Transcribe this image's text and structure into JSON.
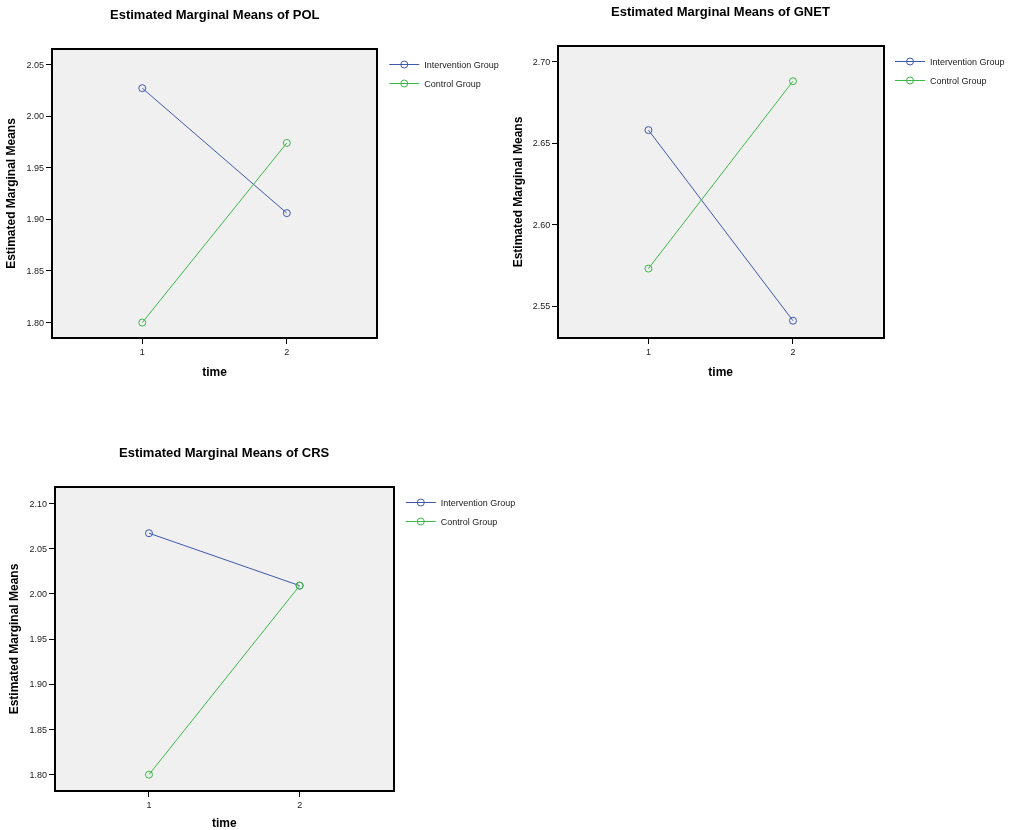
{
  "chart_data": [
    {
      "type": "line",
      "title": "Estimated Marginal Means of POL",
      "xlabel": "time",
      "ylabel": "Estimated Marginal Means",
      "categories": [
        "1",
        "2"
      ],
      "ylim": [
        1.786,
        2.064
      ],
      "yticks": [
        {
          "value": 1.8,
          "label": "1.80"
        },
        {
          "value": 1.85,
          "label": "1.85"
        },
        {
          "value": 1.9,
          "label": "1.90"
        },
        {
          "value": 1.95,
          "label": "1.95"
        },
        {
          "value": 2.0,
          "label": "2.00"
        },
        {
          "value": 2.05,
          "label": "2.05"
        }
      ],
      "marker": "circle",
      "legend": "top right",
      "grid": false,
      "series": [
        {
          "name": "Intervention Group",
          "color": "#3e58ac",
          "values": [
            2.027,
            1.906
          ]
        },
        {
          "name": "Control Group",
          "color": "#3cb846",
          "values": [
            1.8,
            1.974
          ]
        }
      ]
    },
    {
      "type": "line",
      "title": "Estimated Marginal Means of GNET",
      "xlabel": "time",
      "ylabel": "Estimated Marginal Means",
      "categories": [
        "1",
        "2"
      ],
      "ylim": [
        2.531,
        2.709
      ],
      "yticks": [
        {
          "value": 2.55,
          "label": "2.55"
        },
        {
          "value": 2.6,
          "label": "2.60"
        },
        {
          "value": 2.65,
          "label": "2.65"
        },
        {
          "value": 2.7,
          "label": "2.70"
        }
      ],
      "marker": "circle",
      "legend": "top right",
      "grid": false,
      "series": [
        {
          "name": "Intervention Group",
          "color": "#3e58ac",
          "values": [
            2.658,
            2.541
          ]
        },
        {
          "name": "Control Group",
          "color": "#3cb846",
          "values": [
            2.573,
            2.688
          ]
        }
      ]
    },
    {
      "type": "line",
      "title": "Estimated Marginal Means of CRS",
      "xlabel": "time",
      "ylabel": "Estimated Marginal Means",
      "categories": [
        "1",
        "2"
      ],
      "ylim": [
        1.783,
        2.117
      ],
      "yticks": [
        {
          "value": 1.8,
          "label": "1.80"
        },
        {
          "value": 1.85,
          "label": "1.85"
        },
        {
          "value": 1.9,
          "label": "1.90"
        },
        {
          "value": 1.95,
          "label": "1.95"
        },
        {
          "value": 2.0,
          "label": "2.00"
        },
        {
          "value": 2.05,
          "label": "2.05"
        },
        {
          "value": 2.1,
          "label": "2.10"
        }
      ],
      "marker": "circle",
      "legend": "top right",
      "grid": false,
      "series": [
        {
          "name": "Intervention Group",
          "color": "#3e58ac",
          "values": [
            2.067,
            2.009
          ]
        },
        {
          "name": "Control Group",
          "color": "#3cb846",
          "values": [
            1.8,
            2.009
          ]
        }
      ]
    }
  ]
}
